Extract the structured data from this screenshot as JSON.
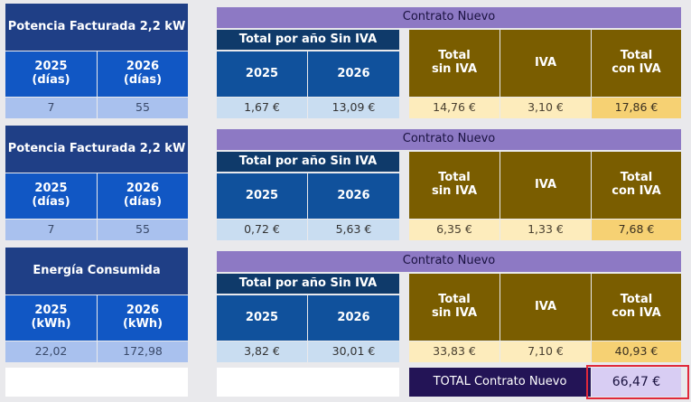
{
  "sections": [
    {
      "header_label": "Potencia Facturada 2,2 kW",
      "col1_label": "2025\n(días)",
      "col2_label": "2026\n(días)",
      "col1_value": "7",
      "col2_value": "55",
      "contract_title": "Contrato Nuevo",
      "year_total_title": "Total por año Sin IVA",
      "year_col1": "2025",
      "year_col2": "2026",
      "year_val1": "1,67 €",
      "year_val2": "13,09 €",
      "sum_label_a": "Total\nsin IVA",
      "sum_label_b": "IVA",
      "sum_label_c": "Total\ncon IVA",
      "sum_val_a": "14,76 €",
      "sum_val_b": "3,10 €",
      "sum_val_c": "17,86 €"
    },
    {
      "header_label": "Potencia Facturada 2,2 kW",
      "col1_label": "2025\n(días)",
      "col2_label": "2026\n(días)",
      "col1_value": "7",
      "col2_value": "55",
      "contract_title": "Contrato Nuevo",
      "year_total_title": "Total por año Sin IVA",
      "year_col1": "2025",
      "year_col2": "2026",
      "year_val1": "0,72 €",
      "year_val2": "5,63 €",
      "sum_label_a": "Total\nsin IVA",
      "sum_label_b": "IVA",
      "sum_label_c": "Total\ncon IVA",
      "sum_val_a": "6,35 €",
      "sum_val_b": "1,33 €",
      "sum_val_c": "7,68 €"
    },
    {
      "header_label": "Energía Consumida",
      "col1_label": "2025\n(kWh)",
      "col2_label": "2026\n(kWh)",
      "col1_value": "22,02",
      "col2_value": "172,98",
      "contract_title": "Contrato Nuevo",
      "year_total_title": "Total por año Sin IVA",
      "year_col1": "2025",
      "year_col2": "2026",
      "year_val1": "3,82 €",
      "year_val2": "30,01 €",
      "sum_label_a": "Total\nsin IVA",
      "sum_label_b": "IVA",
      "sum_label_c": "Total\ncon IVA",
      "sum_val_a": "33,83 €",
      "sum_val_b": "7,10 €",
      "sum_val_c": "40,93 €"
    }
  ],
  "footer": {
    "total_label": "TOTAL Contrato Nuevo",
    "total_value": "66,47 €"
  },
  "colors": {
    "header_dark": "#1f3f86",
    "header_blue": "#1157c4",
    "purple": "#8d79c4",
    "olive": "#7a5d00",
    "highlight_border": "#e0283a"
  }
}
